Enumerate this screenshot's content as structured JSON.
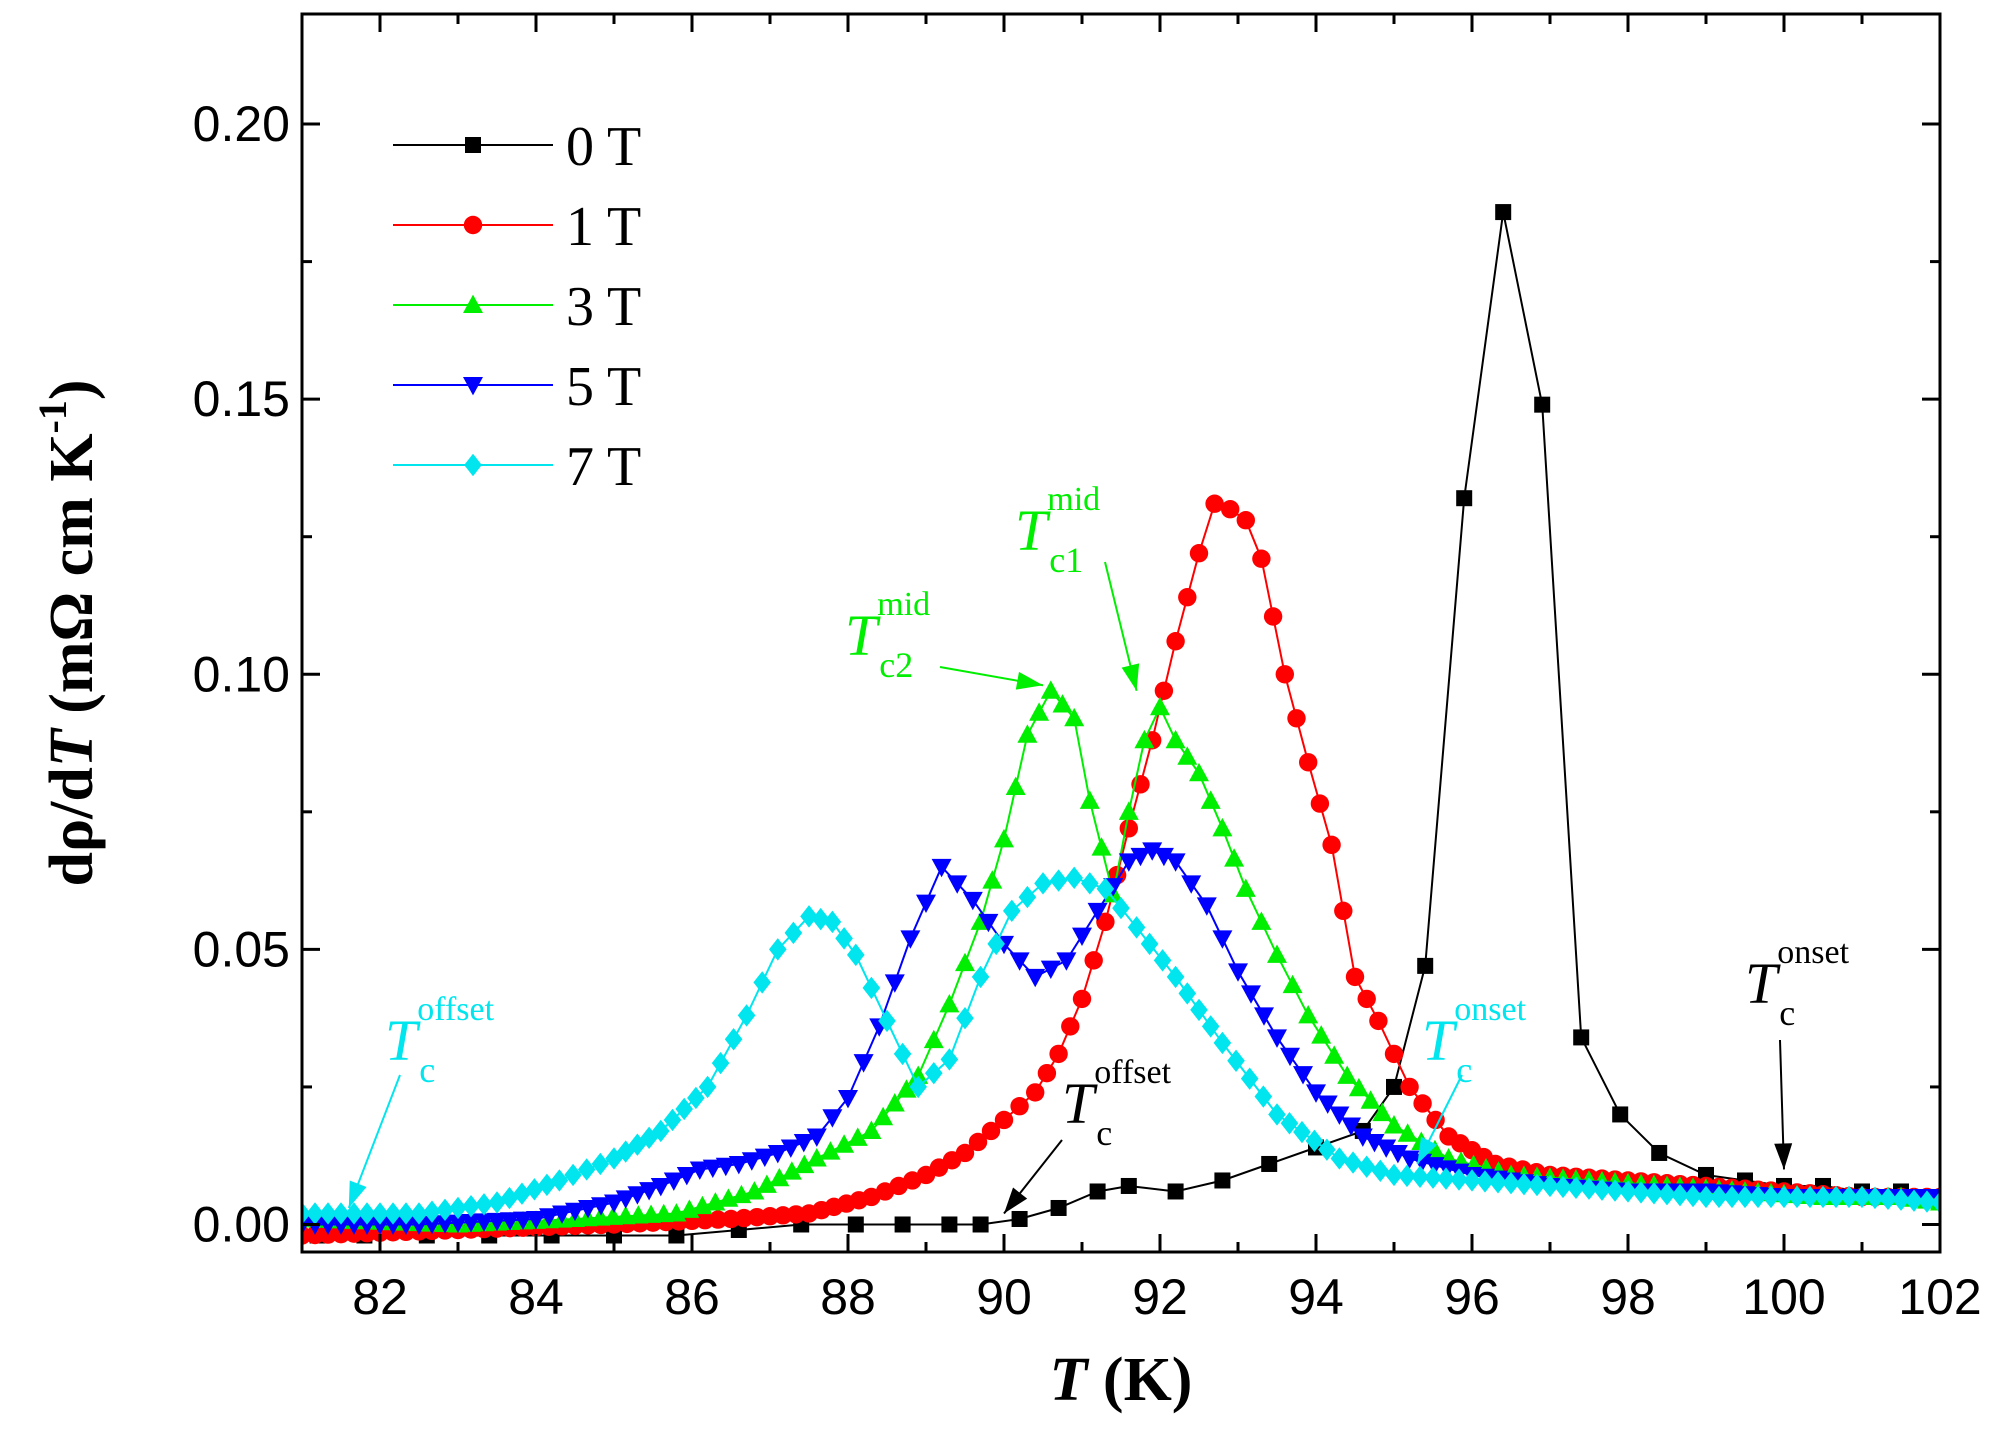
{
  "chart_data": {
    "type": "line",
    "xlabel": "T (K)",
    "ylabel": "dρ/dT (mΩ cm K-1)",
    "xlim": [
      81,
      102
    ],
    "ylim": [
      -0.005,
      0.22
    ],
    "xticks": [
      82,
      84,
      86,
      88,
      90,
      92,
      94,
      96,
      98,
      100,
      102
    ],
    "yticks": [
      0.0,
      0.05,
      0.1,
      0.15,
      0.2
    ],
    "ytick_labels": [
      "0.00",
      "0.05",
      "0.10",
      "0.15",
      "0.20"
    ],
    "legend_position": "top-left",
    "series": [
      {
        "name": "0 T",
        "color": "#000000",
        "marker": "square",
        "x": [
          81.2,
          81.8,
          82.6,
          83.4,
          84.2,
          85.0,
          85.8,
          86.6,
          87.4,
          88.1,
          88.7,
          89.3,
          89.7,
          90.2,
          90.7,
          91.2,
          91.6,
          92.2,
          92.8,
          93.4,
          94.0,
          94.6,
          95.0,
          95.4,
          95.9,
          96.4,
          96.9,
          97.4,
          97.9,
          98.4,
          99.0,
          99.5,
          100.0,
          100.5,
          101.0,
          101.5,
          102.0
        ],
        "y": [
          -0.002,
          -0.002,
          -0.002,
          -0.002,
          -0.002,
          -0.002,
          -0.002,
          -0.001,
          0.0,
          0.0,
          0.0,
          0.0,
          0.0,
          0.001,
          0.003,
          0.006,
          0.007,
          0.006,
          0.008,
          0.011,
          0.014,
          0.017,
          0.025,
          0.047,
          0.132,
          0.184,
          0.149,
          0.034,
          0.02,
          0.013,
          0.009,
          0.008,
          0.007,
          0.007,
          0.006,
          0.006,
          0.005
        ]
      },
      {
        "name": "1 T",
        "color": "#ff0000",
        "marker": "circle",
        "x": [
          81.0,
          83.0,
          85.0,
          86.5,
          87.5,
          88.3,
          89.0,
          89.5,
          90.0,
          90.4,
          90.7,
          91.0,
          91.3,
          91.6,
          91.9,
          92.2,
          92.5,
          92.7,
          92.9,
          93.1,
          93.3,
          93.6,
          93.9,
          94.2,
          94.5,
          94.8,
          95.2,
          95.7,
          96.3,
          97.0,
          98.0,
          99.0,
          100.0,
          101.0,
          102.0
        ],
        "y": [
          -0.002,
          -0.001,
          0.0,
          0.001,
          0.002,
          0.005,
          0.009,
          0.013,
          0.019,
          0.024,
          0.031,
          0.041,
          0.055,
          0.072,
          0.088,
          0.106,
          0.122,
          0.131,
          0.13,
          0.128,
          0.121,
          0.1,
          0.084,
          0.069,
          0.045,
          0.037,
          0.025,
          0.016,
          0.011,
          0.009,
          0.008,
          0.007,
          0.006,
          0.005,
          0.005
        ]
      },
      {
        "name": "3 T",
        "color": "#00ee00",
        "marker": "triangle-up",
        "x": [
          81.0,
          83.0,
          84.5,
          85.8,
          86.8,
          87.6,
          88.3,
          88.9,
          89.3,
          89.7,
          90.0,
          90.3,
          90.6,
          90.9,
          91.1,
          91.4,
          91.6,
          91.8,
          92.0,
          92.2,
          92.5,
          92.8,
          93.1,
          93.5,
          93.9,
          94.4,
          95.0,
          95.7,
          96.5,
          97.5,
          98.5,
          99.5,
          100.5,
          101.5,
          102.0
        ],
        "y": [
          0.001,
          0.0,
          0.001,
          0.002,
          0.006,
          0.012,
          0.017,
          0.027,
          0.04,
          0.055,
          0.07,
          0.089,
          0.097,
          0.092,
          0.077,
          0.06,
          0.075,
          0.088,
          0.094,
          0.088,
          0.082,
          0.072,
          0.061,
          0.049,
          0.038,
          0.027,
          0.018,
          0.012,
          0.009,
          0.008,
          0.007,
          0.006,
          0.005,
          0.005,
          0.004
        ]
      },
      {
        "name": "5 T",
        "color": "#0000ff",
        "marker": "triangle-down",
        "x": [
          81.0,
          82.5,
          84.0,
          85.0,
          85.6,
          86.1,
          86.6,
          87.1,
          87.6,
          88.0,
          88.4,
          88.8,
          89.2,
          89.6,
          90.0,
          90.4,
          90.8,
          91.2,
          91.6,
          91.9,
          92.2,
          92.6,
          93.0,
          93.5,
          94.0,
          94.6,
          95.2,
          96.0,
          97.0,
          98.0,
          99.0,
          100.0,
          101.0,
          102.0
        ],
        "y": [
          0.0,
          0.0,
          0.001,
          0.004,
          0.007,
          0.01,
          0.011,
          0.013,
          0.016,
          0.023,
          0.036,
          0.052,
          0.065,
          0.059,
          0.051,
          0.045,
          0.048,
          0.057,
          0.066,
          0.068,
          0.066,
          0.058,
          0.046,
          0.034,
          0.024,
          0.016,
          0.012,
          0.009,
          0.007,
          0.006,
          0.006,
          0.005,
          0.005,
          0.005
        ]
      },
      {
        "name": "7 T",
        "color": "#00e5ee",
        "marker": "diamond",
        "x": [
          81.0,
          82.5,
          83.5,
          84.3,
          85.0,
          85.6,
          86.2,
          86.7,
          87.1,
          87.5,
          87.8,
          88.1,
          88.5,
          88.9,
          89.3,
          89.7,
          90.1,
          90.5,
          90.9,
          91.3,
          91.7,
          92.2,
          92.8,
          93.5,
          94.3,
          95.0,
          96.0,
          97.0,
          98.0,
          99.0,
          100.0,
          101.0,
          102.0
        ],
        "y": [
          0.002,
          0.002,
          0.004,
          0.008,
          0.012,
          0.017,
          0.025,
          0.038,
          0.05,
          0.056,
          0.055,
          0.049,
          0.037,
          0.025,
          0.03,
          0.045,
          0.057,
          0.062,
          0.063,
          0.061,
          0.054,
          0.045,
          0.033,
          0.02,
          0.012,
          0.009,
          0.008,
          0.007,
          0.006,
          0.005,
          0.005,
          0.005,
          0.004
        ]
      }
    ],
    "annotations": [
      {
        "id": "t-c1-mid",
        "main": "T",
        "sub": "c1",
        "sup": "mid",
        "color": "#00ee00",
        "points_to": [
          91.7,
          0.097
        ]
      },
      {
        "id": "t-c2-mid",
        "main": "T",
        "sub": "c2",
        "sup": "mid",
        "color": "#00ee00",
        "points_to": [
          90.5,
          0.098
        ]
      },
      {
        "id": "t-c-offset-cyan",
        "main": "T",
        "sub": "c",
        "sup": "offset",
        "color": "#00e5ee",
        "points_to": [
          81.6,
          0.003
        ]
      },
      {
        "id": "t-c-offset-black",
        "main": "T",
        "sub": "c",
        "sup": "offset",
        "color": "#000000",
        "points_to": [
          90.0,
          0.002
        ]
      },
      {
        "id": "t-c-onset-cyan",
        "main": "T",
        "sub": "c",
        "sup": "onset",
        "color": "#00e5ee",
        "points_to": [
          95.3,
          0.011
        ]
      },
      {
        "id": "t-c-onset-black",
        "main": "T",
        "sub": "c",
        "sup": "onset",
        "color": "#000000",
        "points_to": [
          100.0,
          0.01
        ]
      }
    ]
  }
}
